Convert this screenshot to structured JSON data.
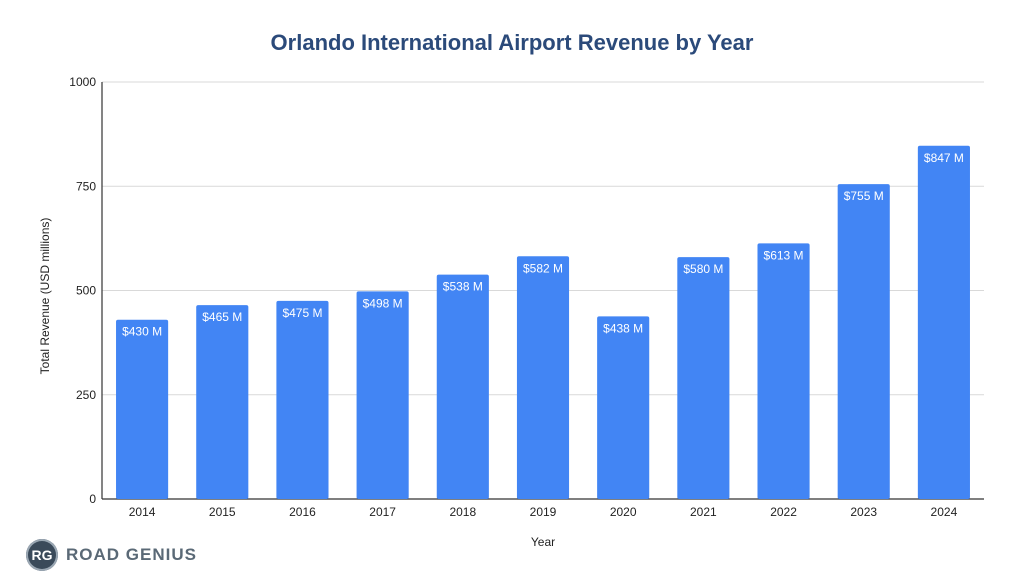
{
  "colors": {
    "bar": "#4285f4",
    "title": "#2b4a7a",
    "grid": "#d9d9d9"
  },
  "logo": {
    "badge": "RG",
    "name": "ROAD GENIUS"
  },
  "chart_data": {
    "type": "bar",
    "title": "Orlando International Airport Revenue by Year",
    "xlabel": "Year",
    "ylabel": "Total Revenue (USD millions)",
    "ylim": [
      0,
      1000
    ],
    "yticks": [
      "0",
      "250",
      "500",
      "750",
      "1000"
    ],
    "grid": true,
    "categories": [
      "2014",
      "2015",
      "2016",
      "2017",
      "2018",
      "2019",
      "2020",
      "2021",
      "2022",
      "2023",
      "2024"
    ],
    "values": [
      430,
      465,
      475,
      498,
      538,
      582,
      438,
      580,
      613,
      755,
      847
    ],
    "data_labels": [
      "$430 M",
      "$465 M",
      "$475 M",
      "$498 M",
      "$538 M",
      "$582 M",
      "$438 M",
      "$580 M",
      "$613 M",
      "$755 M",
      "$847 M"
    ]
  }
}
